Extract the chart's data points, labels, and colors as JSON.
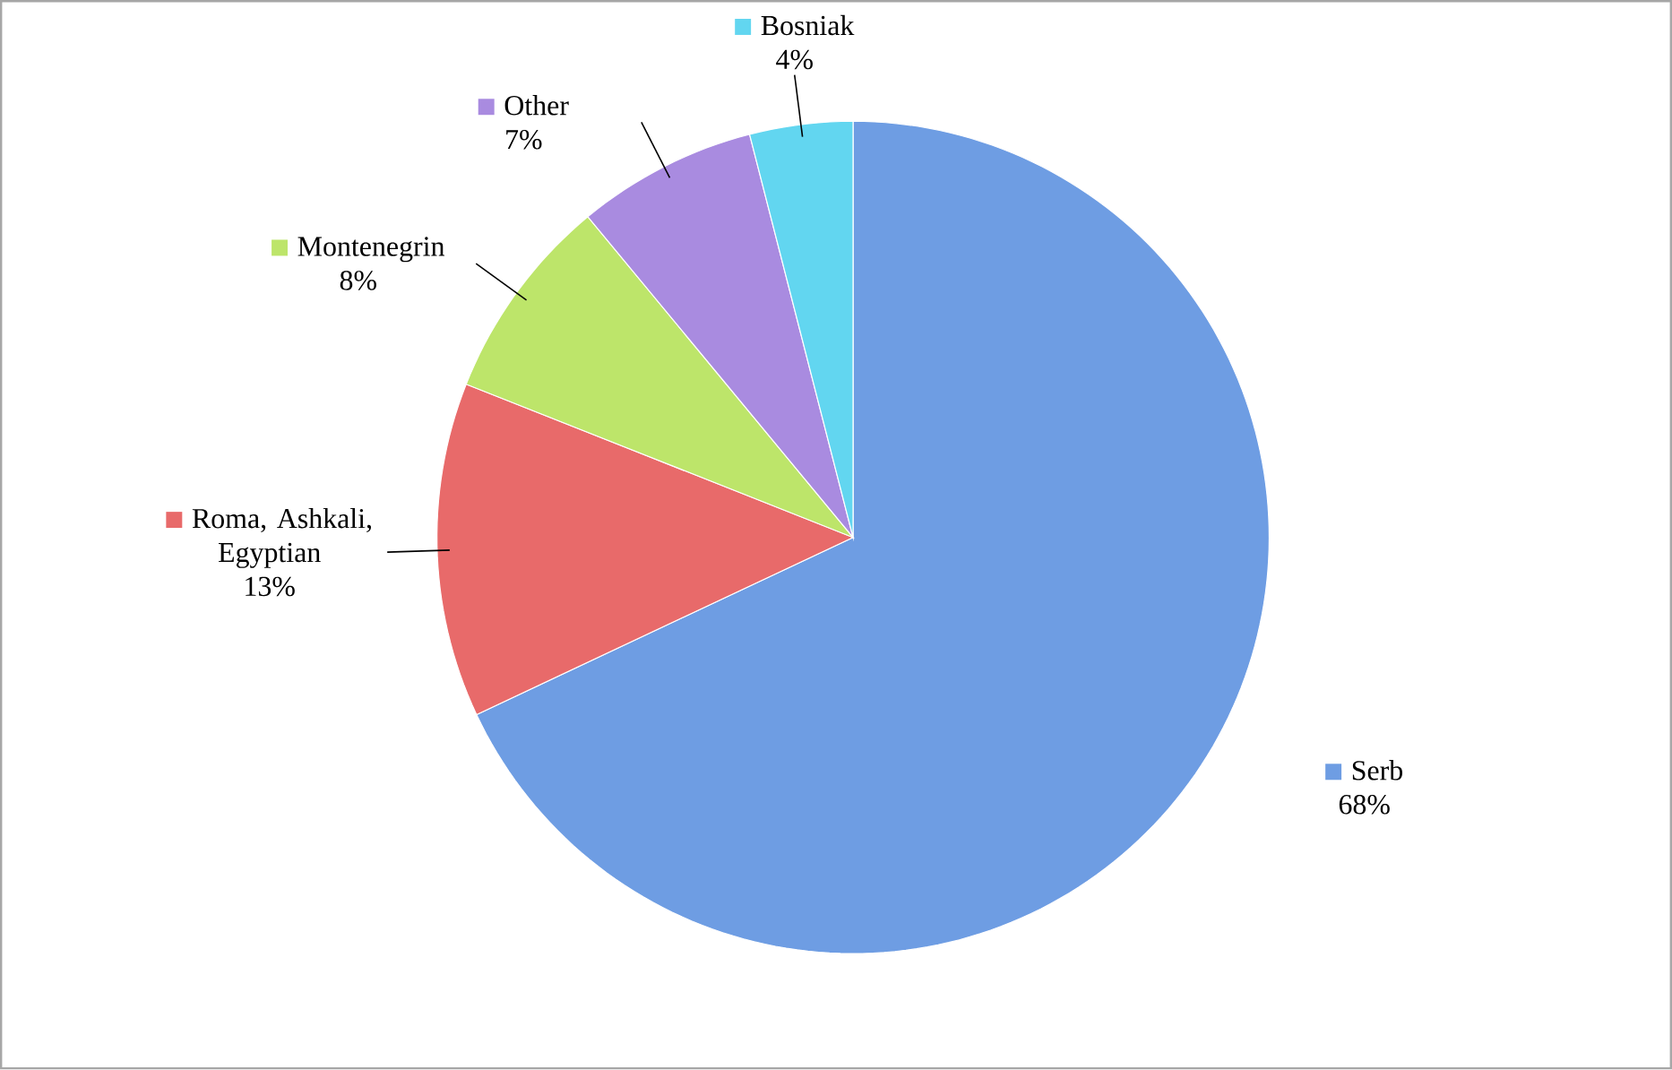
{
  "chart_data": {
    "type": "pie",
    "categories": [
      "Serb",
      "Roma, Ashkali, Egyptian",
      "Montenegrin",
      "Other",
      "Bosniak"
    ],
    "values": [
      68,
      13,
      8,
      7,
      4
    ],
    "value_labels": [
      "68%",
      "13%",
      "8%",
      "7%",
      "4%"
    ],
    "colors": [
      "#6e9de3",
      "#e86a6a",
      "#bde56a",
      "#a98be0",
      "#62d6f0"
    ],
    "legend": "top left"
  }
}
